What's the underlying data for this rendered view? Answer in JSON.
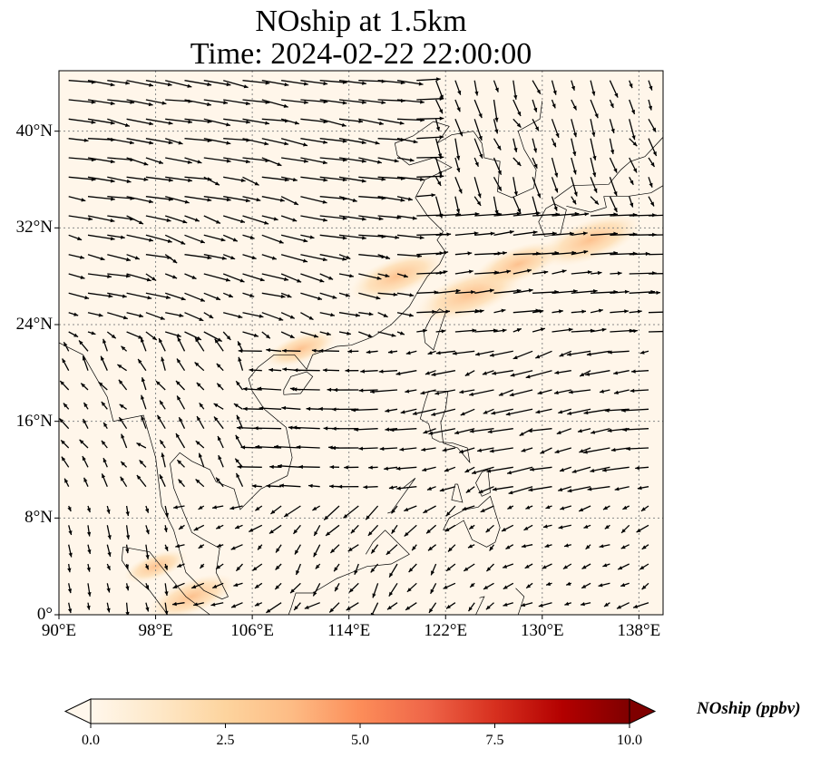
{
  "title": {
    "line1": "NOship at 1.5km",
    "line2": "Time: 2024-02-22 22:00:00"
  },
  "chart_data": {
    "type": "map",
    "variable": "NOship",
    "level": "1.5km",
    "time": "2024-02-22 22:00:00",
    "projection": "PlateCarree",
    "lon_range": [
      90,
      140
    ],
    "lat_range": [
      0,
      45
    ],
    "lon_ticks": [
      "90°E",
      "98°E",
      "106°E",
      "114°E",
      "122°E",
      "130°E",
      "138°E"
    ],
    "lat_ticks": [
      "0°",
      "8°N",
      "16°N",
      "24°N",
      "32°N",
      "40°N"
    ],
    "gridlines": true,
    "overlay": "wind vectors (quiver)",
    "high_concentration_regions": [
      {
        "lon": 118,
        "lat": 28,
        "level": 2.5
      },
      {
        "lon": 124,
        "lat": 26.5,
        "level": 3.0
      },
      {
        "lon": 128,
        "lat": 29,
        "level": 2.2
      },
      {
        "lon": 134,
        "lat": 31,
        "level": 2.8
      },
      {
        "lon": 110,
        "lat": 22,
        "level": 1.5
      },
      {
        "lon": 101,
        "lat": 1.5,
        "level": 2.2
      },
      {
        "lon": 98,
        "lat": 4,
        "level": 1.2
      }
    ],
    "colorbar": {
      "label": "NOship (ppbv)",
      "min": 0.0,
      "max": 10.0,
      "ticks": [
        "0.0",
        "2.5",
        "5.0",
        "7.5",
        "10.0"
      ],
      "colormap": "OrRd",
      "extend": "both",
      "stops": [
        "#fff7ec",
        "#fee8c8",
        "#fdd49e",
        "#fdbb84",
        "#fc8d59",
        "#ef6548",
        "#d7301f",
        "#b30000",
        "#7f0000"
      ]
    }
  },
  "colors": {
    "background_field": "#fff6ea",
    "grid": "#888888",
    "coast": "#000000",
    "arrow": "#000000"
  }
}
